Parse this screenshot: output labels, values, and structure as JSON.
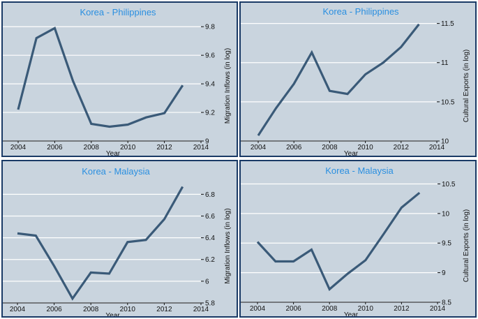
{
  "chart_data": [
    {
      "type": "line",
      "title": "Korea - Philippines",
      "xlabel": "Year",
      "ylabel": "Migration Inflows (in log)",
      "x": [
        2004,
        2005,
        2006,
        2007,
        2008,
        2009,
        2010,
        2011,
        2012,
        2013
      ],
      "series": [
        {
          "values": [
            9.22,
            9.72,
            9.79,
            9.42,
            9.12,
            9.1,
            9.115,
            9.165,
            9.195,
            9.39
          ]
        }
      ],
      "xlim": [
        2004,
        2014
      ],
      "ylim": [
        9.0,
        9.85
      ],
      "xticks": [
        2004,
        2006,
        2008,
        2010,
        2012,
        2014
      ],
      "yticks": [
        9,
        9.2,
        9.4,
        9.6,
        9.8
      ],
      "ytick_labels": [
        "9",
        "9.2",
        "9.4",
        "9.6",
        "9.8"
      ],
      "y_axis_side": "right",
      "grid": true,
      "line_color": "#3a5a78"
    },
    {
      "type": "line",
      "title": "Korea - Philippines",
      "xlabel": "Year",
      "ylabel": "Cultural Exports (in log)",
      "x": [
        2004,
        2005,
        2006,
        2007,
        2008,
        2009,
        2010,
        2011,
        2012,
        2013
      ],
      "series": [
        {
          "values": [
            10.07,
            10.42,
            10.73,
            11.13,
            10.64,
            10.6,
            10.85,
            11.0,
            11.2,
            11.49
          ]
        }
      ],
      "xlim": [
        2004,
        2014
      ],
      "ylim": [
        10.0,
        11.55
      ],
      "xticks": [
        2004,
        2006,
        2008,
        2010,
        2012,
        2014
      ],
      "yticks": [
        10,
        10.5,
        11,
        11.5
      ],
      "ytick_labels": [
        "10",
        "10.5",
        "11",
        "11.5"
      ],
      "y_axis_side": "right",
      "grid": true,
      "line_color": "#3a5a78"
    },
    {
      "type": "line",
      "title": "Korea - Malaysia",
      "xlabel": "Year",
      "ylabel": "Migration Inflows (in log)",
      "x": [
        2004,
        2005,
        2006,
        2007,
        2008,
        2009,
        2010,
        2011,
        2012,
        2013
      ],
      "series": [
        {
          "values": [
            6.44,
            6.42,
            6.14,
            5.84,
            6.08,
            6.07,
            6.36,
            6.38,
            6.57,
            6.87
          ]
        }
      ],
      "xlim": [
        2004,
        2014
      ],
      "ylim": [
        5.8,
        6.95
      ],
      "xticks": [
        2004,
        2006,
        2008,
        2010,
        2012,
        2014
      ],
      "yticks": [
        5.8,
        6,
        6.2,
        6.4,
        6.6,
        6.8
      ],
      "ytick_labels": [
        "5.8",
        "6",
        "6.2",
        "6.4",
        "6.6",
        "6.8"
      ],
      "y_axis_side": "right",
      "grid": true,
      "line_color": "#3a5a78"
    },
    {
      "type": "line",
      "title": "Korea - Malaysia",
      "xlabel": "Year",
      "ylabel": "Cultural Exports (in log)",
      "x": [
        2004,
        2005,
        2006,
        2007,
        2008,
        2009,
        2010,
        2011,
        2012,
        2013
      ],
      "series": [
        {
          "values": [
            9.52,
            9.19,
            9.19,
            9.39,
            8.72,
            8.98,
            9.21,
            9.65,
            10.1,
            10.35
          ]
        }
      ],
      "xlim": [
        2004,
        2014
      ],
      "ylim": [
        8.5,
        10.6
      ],
      "xticks": [
        2004,
        2006,
        2008,
        2010,
        2012,
        2014
      ],
      "yticks": [
        8.5,
        9,
        9.5,
        10,
        10.5
      ],
      "ytick_labels": [
        "8.5",
        "9",
        "9.5",
        "10",
        "10.5"
      ],
      "y_axis_side": "right",
      "grid": true,
      "line_color": "#3a5a78"
    }
  ]
}
